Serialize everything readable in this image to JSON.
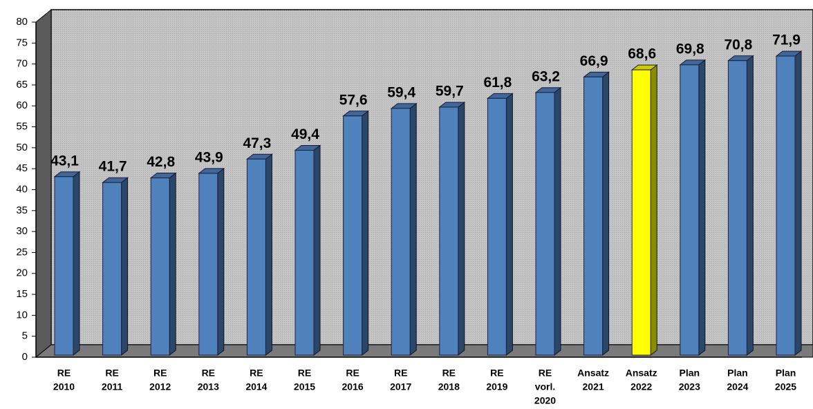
{
  "chart_data": {
    "type": "bar3d",
    "categories": [
      [
        "RE",
        "2010"
      ],
      [
        "RE",
        "2011"
      ],
      [
        "RE",
        "2012"
      ],
      [
        "RE",
        "2013"
      ],
      [
        "RE",
        "2014"
      ],
      [
        "RE",
        "2015"
      ],
      [
        "RE",
        "2016"
      ],
      [
        "RE",
        "2017"
      ],
      [
        "RE",
        "2018"
      ],
      [
        "RE",
        "2019"
      ],
      [
        "RE",
        "vorl.",
        "2020"
      ],
      [
        "Ansatz",
        "2021"
      ],
      [
        "Ansatz",
        "2022"
      ],
      [
        "Plan",
        "2023"
      ],
      [
        "Plan",
        "2024"
      ],
      [
        "Plan",
        "2025"
      ]
    ],
    "values": [
      43.1,
      41.7,
      42.8,
      43.9,
      47.3,
      49.4,
      57.6,
      59.4,
      59.7,
      61.8,
      63.2,
      66.9,
      68.6,
      69.8,
      70.8,
      71.9
    ],
    "value_labels": [
      "43,1",
      "41,7",
      "42,8",
      "43,9",
      "47,3",
      "49,4",
      "57,6",
      "59,4",
      "59,7",
      "61,8",
      "63,2",
      "66,9",
      "68,6",
      "69,8",
      "70,8",
      "71,9"
    ],
    "colors": [
      "#4f81bd",
      "#4f81bd",
      "#4f81bd",
      "#4f81bd",
      "#4f81bd",
      "#4f81bd",
      "#4f81bd",
      "#4f81bd",
      "#4f81bd",
      "#4f81bd",
      "#4f81bd",
      "#4f81bd",
      "#ffff00",
      "#4f81bd",
      "#4f81bd",
      "#4f81bd"
    ],
    "ylim": [
      0,
      80
    ],
    "yticks": [
      0,
      5,
      10,
      15,
      20,
      25,
      30,
      35,
      40,
      45,
      50,
      55,
      60,
      65,
      70,
      75,
      80
    ]
  }
}
